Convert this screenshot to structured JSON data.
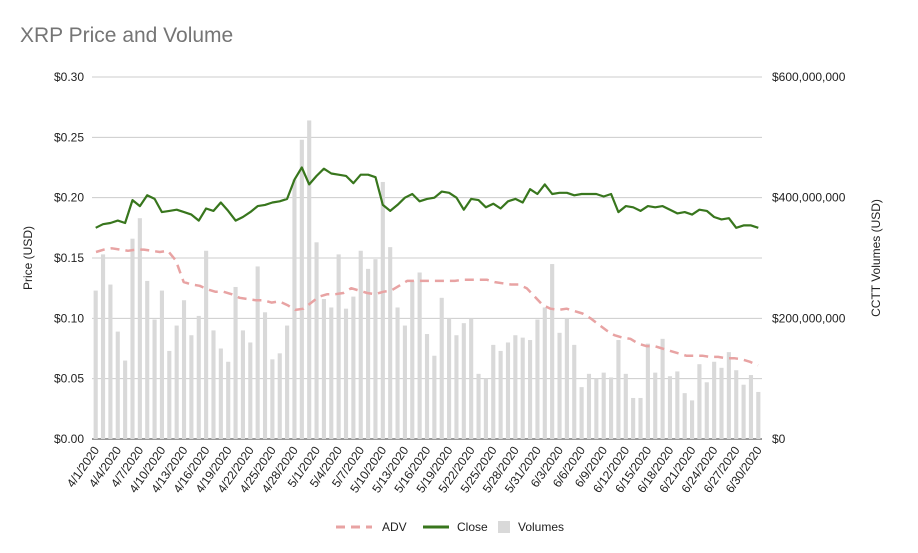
{
  "chart_data": {
    "type": "bar+line",
    "title": "XRP Price and Volume",
    "ylabel_left": "Price (USD)",
    "ylabel_right": "CCTT Volumes (USD)",
    "ylim_left": [
      0,
      0.3
    ],
    "ylim_right": [
      0,
      600000000
    ],
    "yticks_left": [
      "$0.00",
      "$0.05",
      "$0.10",
      "$0.15",
      "$0.20",
      "$0.25",
      "$0.30"
    ],
    "yticks_right": [
      "$0",
      "$200,000,000",
      "$400,000,000",
      "$600,000,000"
    ],
    "x_tick_labels": [
      "4/1/2020",
      "4/4/2020",
      "4/7/2020",
      "4/10/2020",
      "4/13/2020",
      "4/16/2020",
      "4/19/2020",
      "4/22/2020",
      "4/25/2020",
      "4/28/2020",
      "5/1/2020",
      "5/4/2020",
      "5/7/2020",
      "5/10/2020",
      "5/13/2020",
      "5/16/2020",
      "5/19/2020",
      "5/22/2020",
      "5/25/2020",
      "5/28/2020",
      "5/31/2020",
      "6/3/2020",
      "6/6/2020",
      "6/9/2020",
      "6/12/2020",
      "6/15/2020",
      "6/18/2020",
      "6/21/2020",
      "6/24/2020",
      "6/27/2020",
      "6/30/2020"
    ],
    "grid": true,
    "legend_position": "bottom",
    "series": [
      {
        "name": "ADV",
        "type": "line",
        "style": "dashed",
        "color": "#e8a3a3",
        "axis": "left",
        "values": [
          0.155,
          0.157,
          0.158,
          0.157,
          0.156,
          0.157,
          0.157,
          0.156,
          0.155,
          0.156,
          0.148,
          0.13,
          0.128,
          0.127,
          0.124,
          0.122,
          0.122,
          0.12,
          0.117,
          0.116,
          0.115,
          0.115,
          0.113,
          0.114,
          0.111,
          0.107,
          0.108,
          0.113,
          0.118,
          0.12,
          0.12,
          0.121,
          0.125,
          0.123,
          0.121,
          0.12,
          0.122,
          0.123,
          0.127,
          0.131,
          0.131,
          0.131,
          0.131,
          0.131,
          0.131,
          0.131,
          0.132,
          0.132,
          0.132,
          0.132,
          0.13,
          0.129,
          0.128,
          0.128,
          0.125,
          0.118,
          0.111,
          0.108,
          0.107,
          0.108,
          0.106,
          0.104,
          0.1,
          0.095,
          0.09,
          0.086,
          0.084,
          0.083,
          0.079,
          0.077,
          0.077,
          0.075,
          0.073,
          0.071,
          0.069,
          0.069,
          0.069,
          0.068,
          0.068,
          0.067,
          0.067,
          0.066,
          0.064,
          0.061
        ]
      },
      {
        "name": "Close",
        "type": "line",
        "color": "#38761d",
        "axis": "left",
        "values": [
          0.175,
          0.178,
          0.179,
          0.181,
          0.179,
          0.198,
          0.193,
          0.202,
          0.199,
          0.188,
          0.189,
          0.19,
          0.188,
          0.186,
          0.181,
          0.191,
          0.189,
          0.196,
          0.189,
          0.181,
          0.184,
          0.188,
          0.193,
          0.194,
          0.196,
          0.197,
          0.199,
          0.215,
          0.225,
          0.211,
          0.218,
          0.224,
          0.22,
          0.219,
          0.218,
          0.212,
          0.219,
          0.219,
          0.217,
          0.194,
          0.189,
          0.194,
          0.2,
          0.203,
          0.197,
          0.199,
          0.2,
          0.205,
          0.204,
          0.2,
          0.19,
          0.199,
          0.198,
          0.192,
          0.195,
          0.191,
          0.197,
          0.199,
          0.196,
          0.207,
          0.203,
          0.211,
          0.203,
          0.204,
          0.204,
          0.202,
          0.203,
          0.203,
          0.203,
          0.201,
          0.203,
          0.188,
          0.193,
          0.192,
          0.189,
          0.193,
          0.192,
          0.193,
          0.19,
          0.187,
          0.188,
          0.186,
          0.19,
          0.189,
          0.184,
          0.182,
          0.183,
          0.175,
          0.177,
          0.177,
          0.175
        ]
      },
      {
        "name": "Volumes",
        "type": "bar",
        "color": "#d9d9d9",
        "axis": "right",
        "values": [
          246000000,
          306000000,
          256000000,
          178000000,
          130000000,
          332000000,
          366000000,
          262000000,
          198000000,
          246000000,
          146000000,
          188000000,
          230000000,
          172000000,
          204000000,
          312000000,
          180000000,
          150000000,
          128000000,
          252000000,
          180000000,
          160000000,
          286000000,
          210000000,
          132000000,
          142000000,
          188000000,
          430000000,
          496000000,
          528000000,
          326000000,
          232000000,
          218000000,
          306000000,
          216000000,
          236000000,
          312000000,
          282000000,
          298000000,
          426000000,
          318000000,
          218000000,
          188000000,
          262000000,
          276000000,
          174000000,
          138000000,
          234000000,
          200000000,
          172000000,
          192000000,
          200000000,
          108000000,
          100000000,
          156000000,
          146000000,
          160000000,
          172000000,
          168000000,
          164000000,
          198000000,
          218000000,
          290000000,
          176000000,
          200000000,
          156000000,
          86000000,
          108000000,
          100000000,
          110000000,
          102000000,
          164000000,
          108000000,
          68000000,
          68000000,
          158000000,
          110000000,
          166000000,
          104000000,
          112000000,
          76000000,
          64000000,
          124000000,
          94000000,
          128000000,
          118000000,
          144000000,
          114000000,
          90000000,
          106000000,
          78000000
        ]
      }
    ]
  }
}
